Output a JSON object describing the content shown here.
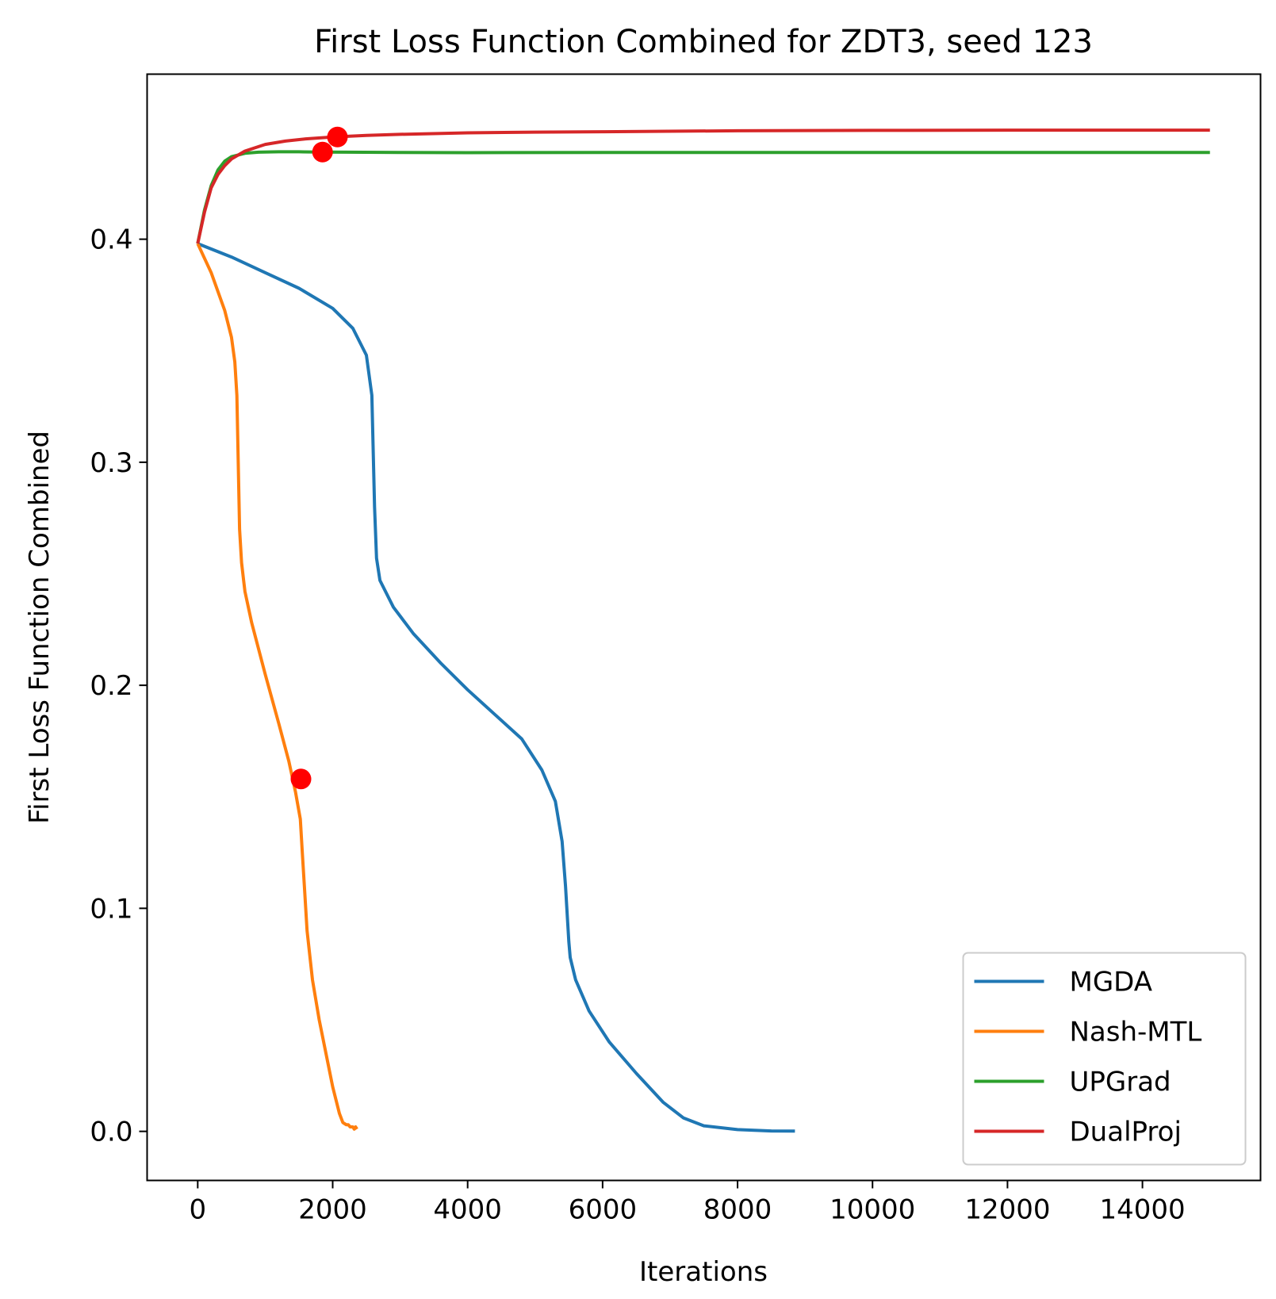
{
  "chart_data": {
    "type": "line",
    "title": "First Loss Function Combined for ZDT3, seed 123",
    "xlabel": "Iterations",
    "ylabel": "First Loss Function Combined",
    "xlim": [
      -750,
      15750
    ],
    "ylim": [
      -0.022,
      0.474
    ],
    "xticks": [
      0,
      2000,
      4000,
      6000,
      8000,
      10000,
      12000,
      14000
    ],
    "xtick_labels": [
      "0",
      "2000",
      "4000",
      "6000",
      "8000",
      "10000",
      "12000",
      "14000"
    ],
    "yticks": [
      0.0,
      0.1,
      0.2,
      0.3,
      0.4
    ],
    "ytick_labels": [
      "0.0",
      "0.1",
      "0.2",
      "0.3",
      "0.4"
    ],
    "grid": false,
    "legend_position": "lower-right",
    "series": [
      {
        "name": "MGDA",
        "color": "#1f77b4",
        "x": [
          0,
          500,
          1000,
          1500,
          2000,
          2300,
          2500,
          2580,
          2620,
          2650,
          2700,
          2900,
          3200,
          3600,
          4000,
          4400,
          4800,
          5100,
          5300,
          5400,
          5450,
          5480,
          5500,
          5520,
          5600,
          5800,
          6100,
          6500,
          6900,
          7200,
          7500,
          8000,
          8500,
          8850
        ],
        "y": [
          0.398,
          0.392,
          0.385,
          0.378,
          0.369,
          0.36,
          0.348,
          0.33,
          0.28,
          0.257,
          0.247,
          0.235,
          0.223,
          0.21,
          0.198,
          0.187,
          0.176,
          0.162,
          0.148,
          0.13,
          0.11,
          0.095,
          0.085,
          0.078,
          0.068,
          0.054,
          0.04,
          0.026,
          0.013,
          0.006,
          0.0025,
          0.0008,
          0.0002,
          0.0001
        ]
      },
      {
        "name": "Nash-MTL",
        "color": "#ff7f0e",
        "x": [
          0,
          200,
          400,
          500,
          550,
          580,
          600,
          620,
          650,
          680,
          700,
          800,
          1000,
          1200,
          1350,
          1450,
          1520,
          1550,
          1580,
          1620,
          1700,
          1800,
          1900,
          2000,
          2100,
          2150,
          2200,
          2230,
          2260,
          2300,
          2320,
          2340,
          2360
        ],
        "y": [
          0.398,
          0.385,
          0.368,
          0.356,
          0.345,
          0.33,
          0.3,
          0.27,
          0.255,
          0.247,
          0.242,
          0.228,
          0.205,
          0.183,
          0.166,
          0.152,
          0.14,
          0.125,
          0.11,
          0.09,
          0.068,
          0.05,
          0.035,
          0.02,
          0.008,
          0.004,
          0.003,
          0.003,
          0.002,
          0.002,
          0.001,
          0.002,
          0.001
        ]
      },
      {
        "name": "UPGrad",
        "color": "#2ca02c",
        "x": [
          0,
          100,
          200,
          300,
          400,
          500,
          700,
          900,
          1200,
          1500,
          1800,
          2200,
          3000,
          4000,
          6000,
          8000,
          10000,
          12000,
          14000,
          15000
        ],
        "y": [
          0.398,
          0.413,
          0.424,
          0.431,
          0.435,
          0.437,
          0.4385,
          0.439,
          0.4392,
          0.4392,
          0.4391,
          0.439,
          0.4389,
          0.4388,
          0.4389,
          0.4389,
          0.4389,
          0.4389,
          0.4389,
          0.4389
        ]
      },
      {
        "name": "DualProj",
        "color": "#d62728",
        "x": [
          0,
          100,
          200,
          300,
          400,
          500,
          700,
          1000,
          1300,
          1600,
          2000,
          2500,
          3000,
          4000,
          5000,
          6000,
          8000,
          10000,
          12000,
          14000,
          15000
        ],
        "y": [
          0.398,
          0.412,
          0.423,
          0.429,
          0.433,
          0.436,
          0.4395,
          0.4425,
          0.444,
          0.445,
          0.4458,
          0.4465,
          0.447,
          0.4477,
          0.448,
          0.4482,
          0.4486,
          0.4488,
          0.4489,
          0.4489,
          0.4489
        ]
      }
    ],
    "markers": [
      {
        "x": 2070,
        "y": 0.4458,
        "color": "#ff0000"
      },
      {
        "x": 1850,
        "y": 0.4391,
        "color": "#ff0000"
      },
      {
        "x": 1530,
        "y": 0.158,
        "color": "#ff0000"
      }
    ]
  }
}
